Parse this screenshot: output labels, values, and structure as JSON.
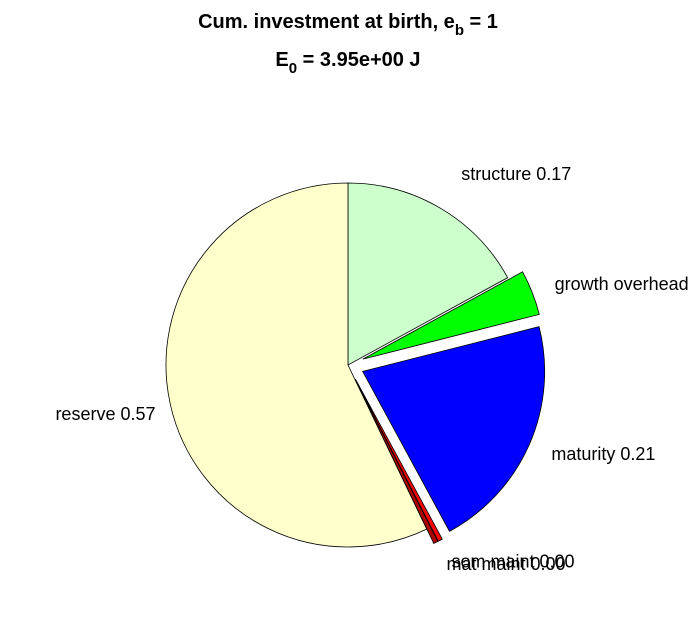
{
  "chart_data": {
    "type": "pie",
    "title": [
      "Cum. investment at birth, e",
      "b",
      " = 1"
    ],
    "subtitle": [
      "E",
      "0",
      " = 3.95e+00 J"
    ],
    "categories": [
      "structure",
      "growth overhead",
      "maturity",
      "som maint",
      "mat maint",
      "reserve"
    ],
    "values": [
      0.17,
      0.04,
      0.21,
      0.004,
      0.004,
      0.57
    ],
    "value_labels": [
      "0.17",
      null,
      "0.21",
      "0.00",
      "0.00",
      "0.57"
    ],
    "colors": [
      "#ccffcc",
      "#00ff00",
      "#0000ff",
      "#ff0000",
      "#b00000",
      "#ffffcc"
    ],
    "explode": [
      false,
      true,
      true,
      true,
      true,
      false
    ]
  }
}
